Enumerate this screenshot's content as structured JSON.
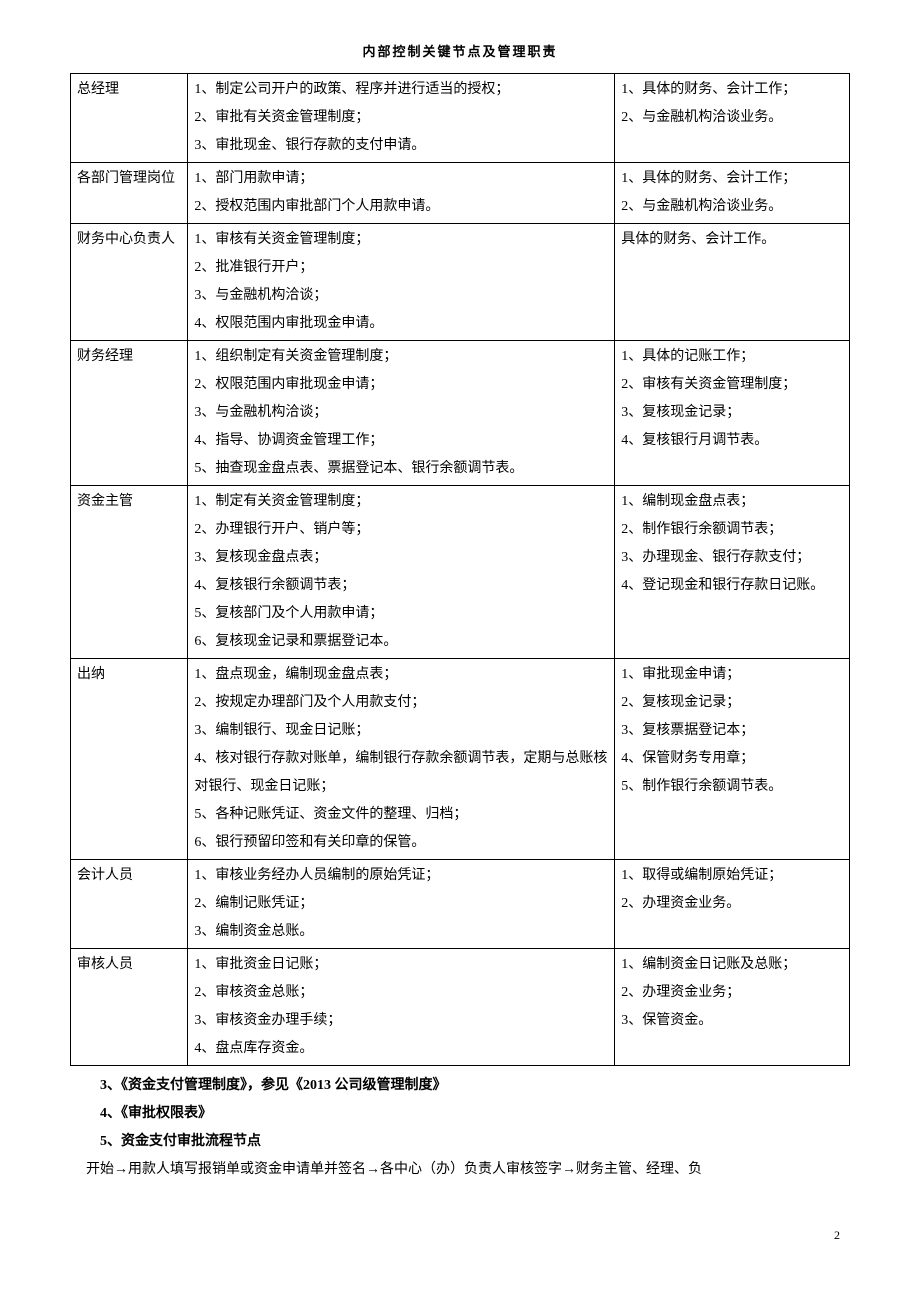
{
  "title": "内部控制关键节点及管理职责",
  "page_number": "2",
  "rows": [
    {
      "role": "总经理",
      "main": [
        "1、制定公司开户的政策、程序并进行适当的授权；",
        "2、审批有关资金管理制度；",
        "3、审批现金、银行存款的支付申请。"
      ],
      "side": [
        "1、具体的财务、会计工作；",
        "2、与金融机构洽谈业务。"
      ]
    },
    {
      "role": "各部门管理岗位",
      "main": [
        "1、部门用款申请；",
        "2、授权范围内审批部门个人用款申请。"
      ],
      "side": [
        "1、具体的财务、会计工作；",
        "2、与金融机构洽谈业务。"
      ]
    },
    {
      "role": "财务中心负责人",
      "main": [
        "1、审核有关资金管理制度；",
        "2、批准银行开户；",
        "3、与金融机构洽谈；",
        "4、权限范围内审批现金申请。"
      ],
      "side": [
        "具体的财务、会计工作。"
      ]
    },
    {
      "role": "财务经理",
      "main": [
        "1、组织制定有关资金管理制度；",
        "2、权限范围内审批现金申请；",
        "3、与金融机构洽谈；",
        "4、指导、协调资金管理工作；",
        "5、抽查现金盘点表、票据登记本、银行余额调节表。"
      ],
      "side": [
        "1、具体的记账工作；",
        "2、审核有关资金管理制度；",
        "3、复核现金记录；",
        "4、复核银行月调节表。"
      ]
    },
    {
      "role": "资金主管",
      "main": [
        "1、制定有关资金管理制度；",
        "2、办理银行开户、销户等；",
        "3、复核现金盘点表；",
        "4、复核银行余额调节表；",
        "5、复核部门及个人用款申请；",
        "6、复核现金记录和票据登记本。"
      ],
      "side": [
        "1、编制现金盘点表；",
        "2、制作银行余额调节表；",
        "3、办理现金、银行存款支付；",
        "4、登记现金和银行存款日记账。"
      ]
    },
    {
      "role": "出纳",
      "main": [
        "1、盘点现金，编制现金盘点表；",
        "2、按规定办理部门及个人用款支付；",
        "3、编制银行、现金日记账；",
        "4、核对银行存款对账单，编制银行存款余额调节表，定期与总账核对银行、现金日记账；",
        "5、各种记账凭证、资金文件的整理、归档；",
        "6、银行预留印签和有关印章的保管。"
      ],
      "side": [
        "1、审批现金申请；",
        "2、复核现金记录；",
        "3、复核票据登记本；",
        "4、保管财务专用章；",
        "5、制作银行余额调节表。"
      ]
    },
    {
      "role": "会计人员",
      "main": [
        "1、审核业务经办人员编制的原始凭证；",
        "2、编制记账凭证；",
        "3、编制资金总账。"
      ],
      "side": [
        "1、取得或编制原始凭证；",
        "2、办理资金业务。"
      ]
    },
    {
      "role": "审核人员",
      "main": [
        "1、审批资金日记账；",
        "2、审核资金总账；",
        "3、审核资金办理手续；",
        "4、盘点库存资金。"
      ],
      "side": [
        "1、编制资金日记账及总账；",
        "2、办理资金业务；",
        "3、保管资金。"
      ]
    }
  ],
  "notes": [
    {
      "text": "3、《资金支付管理制度》，参见《2013 公司级管理制度》",
      "bold": true
    },
    {
      "text": "4、《审批权限表》",
      "bold": true
    },
    {
      "text": "5、资金支付审批流程节点",
      "bold": true
    },
    {
      "text": "开始→用款人填写报销单或资金申请单并签名→各中心（办）负责人审核签字→财务主管、经理、负",
      "bold": false
    }
  ]
}
